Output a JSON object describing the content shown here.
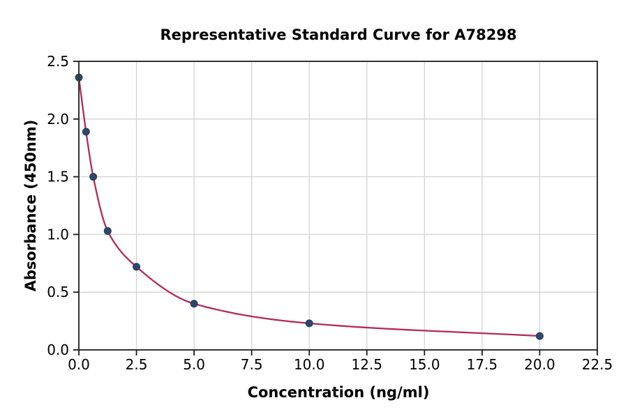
{
  "chart_data": {
    "type": "scatter",
    "title": "Representative Standard Curve for A78298",
    "xlabel": "Concentration (ng/ml)",
    "ylabel": "Absorbance (450nm)",
    "x": [
      0,
      0.313,
      0.625,
      1.25,
      2.5,
      5,
      10,
      20
    ],
    "y": [
      2.36,
      1.89,
      1.5,
      1.03,
      0.72,
      0.4,
      0.23,
      0.12
    ],
    "xlim": [
      0,
      22.5
    ],
    "ylim": [
      0,
      2.5
    ],
    "xticks": [
      0,
      2.5,
      5,
      7.5,
      10,
      12.5,
      15,
      17.5,
      20,
      22.5
    ],
    "xtick_labels": [
      "0.0",
      "2.5",
      "5.0",
      "7.5",
      "10.0",
      "12.5",
      "15.0",
      "17.5",
      "20.0",
      "22.5"
    ],
    "yticks": [
      0,
      0.5,
      1,
      1.5,
      2,
      2.5
    ],
    "ytick_labels": [
      "0.0",
      "0.5",
      "1.0",
      "1.5",
      "2.0",
      "2.5"
    ],
    "grid": true,
    "legend": "none",
    "curve_style": "smooth fit through points, drawn from x=0 to x=20",
    "colors": {
      "curve": "#b4285a",
      "marker": "#2e486b",
      "marker_edge": "#24395a",
      "grid": "#d3d3d3",
      "spine": "#333333",
      "tick": "#1a1a1a",
      "text": "#000000",
      "background": "#ffffff"
    }
  }
}
